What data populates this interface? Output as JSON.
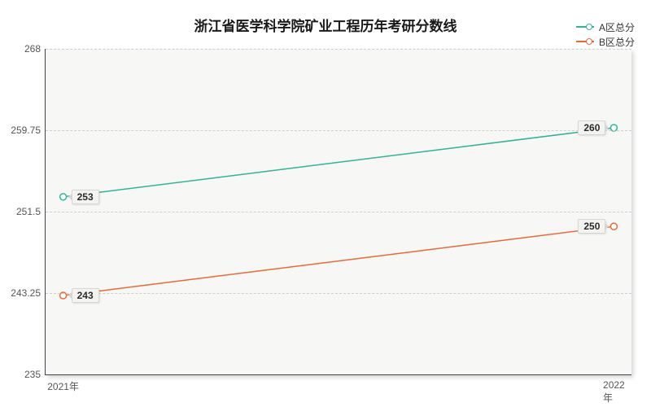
{
  "chart": {
    "type": "line",
    "title": "浙江省医学科学院矿业工程历年考研分数线",
    "title_fontsize": 17,
    "background_color": "#ffffff",
    "plot_background": "#f7f7f5",
    "axis_color": "#444444",
    "grid_color": "#cfcfcf",
    "tick_fontsize": 12,
    "tick_color": "#555555",
    "x": {
      "categories": [
        "2021年",
        "2022年"
      ],
      "positions_pct": [
        3,
        97
      ]
    },
    "y": {
      "min": 235,
      "max": 268,
      "ticks": [
        235,
        243.25,
        251.5,
        259.75,
        268
      ]
    },
    "series": [
      {
        "name": "A区总分",
        "color": "#2fb39a",
        "line_width": 1.5,
        "marker": "circle",
        "marker_size": 4,
        "values": [
          253,
          260
        ],
        "labels": [
          "253",
          "260"
        ]
      },
      {
        "name": "B区总分",
        "color": "#e86a33",
        "line_width": 1.5,
        "marker": "circle",
        "marker_size": 4,
        "values": [
          243,
          250
        ],
        "labels": [
          "243",
          "250"
        ]
      }
    ],
    "legend": {
      "position": "top-right",
      "fontsize": 12
    },
    "label_box": {
      "bg": "#f3f3f2",
      "border": "#d6d6d4",
      "fontsize": 12
    }
  }
}
